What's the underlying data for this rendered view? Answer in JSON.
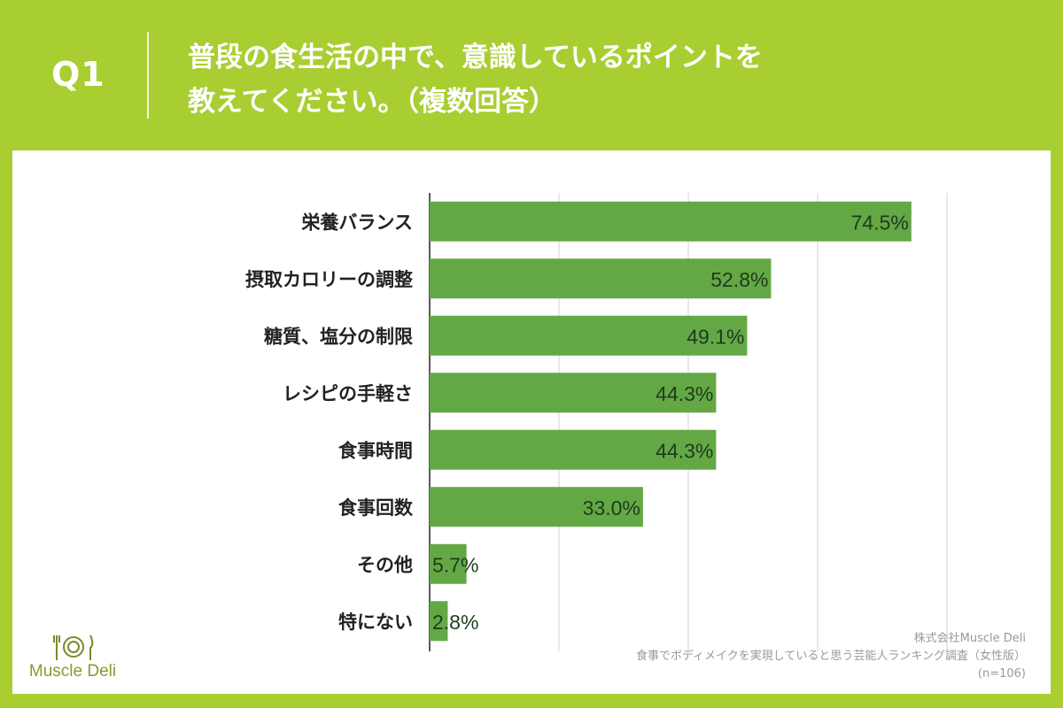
{
  "header": {
    "q_label": "Q1",
    "title_line1": "普段の食生活の中で、意識しているポイントを",
    "title_line2": "教えてください。（複数回答）"
  },
  "colors": {
    "background": "#a9ce32",
    "bar": "#63a845",
    "value_text": "#1f3a1e",
    "grid": "#d0d0d0"
  },
  "chart_data": {
    "type": "bar",
    "orientation": "horizontal",
    "title": "普段の食生活の中で、意識しているポイントを教えてください。（複数回答）",
    "categories": [
      "栄養バランス",
      "摂取カロリーの調整",
      "糖質、塩分の制限",
      "レシピの手軽さ",
      "食事時間",
      "食事回数",
      "その他",
      "特にない"
    ],
    "values": [
      74.5,
      52.8,
      49.1,
      44.3,
      44.3,
      33.0,
      5.7,
      2.8
    ],
    "value_labels": [
      "74.5%",
      "52.8%",
      "49.1%",
      "44.3%",
      "44.3%",
      "33.0%",
      "5.7%",
      "2.8%"
    ],
    "unit": "%",
    "xlim": [
      0,
      80
    ],
    "gridlines": [
      0,
      20,
      40,
      60,
      80
    ],
    "xlabel": "",
    "ylabel": ""
  },
  "logo": {
    "name": "Muscle Deli",
    "icon": "fork-plate-knife-icon"
  },
  "credits": {
    "company": "株式会社Muscle Deli",
    "survey": "食事でボディメイクを実現していると思う芸能人ランキング調査（女性版）",
    "sample": "(n=106)"
  }
}
